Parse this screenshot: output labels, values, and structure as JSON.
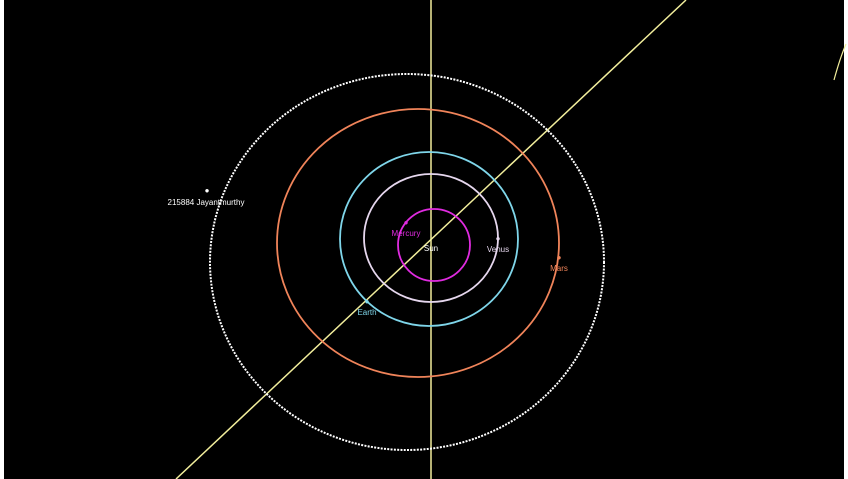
{
  "view": {
    "background_color": "#000000",
    "frame_color": "#ffffff",
    "reference_line_color": "#f2ee9c"
  },
  "sun": {
    "label": "Sun",
    "label_color": "#ffffff"
  },
  "orbits": [
    {
      "id": "mercury",
      "label": "Mercury",
      "color": "#e02be0",
      "label_color": "#e02be0",
      "body": "●"
    },
    {
      "id": "venus",
      "label": "Venus",
      "color": "#e6d7ee",
      "label_color": "#e6d7ee",
      "body": "●"
    },
    {
      "id": "earth",
      "label": "Earth",
      "color": "#7fd6ea",
      "label_color": "#7fd6ea",
      "body": "●"
    },
    {
      "id": "mars",
      "label": "Mars",
      "color": "#f0845a",
      "label_color": "#f0845a",
      "body": "●"
    },
    {
      "id": "asteroid",
      "label": "215884 Jayantmurthy",
      "color": "#ffffff",
      "label_color": "#ffffff",
      "body": "●"
    }
  ]
}
